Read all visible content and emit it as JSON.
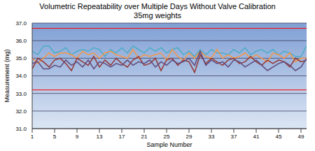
{
  "chart_data": {
    "type": "line",
    "title": "Volumetric Repeatability over Multiple Days Without Valve Calibration",
    "subtitle": "35mg weights",
    "x_label": "Sample Number",
    "y_label": "Measurement (mg)",
    "x": [
      1,
      2,
      3,
      4,
      5,
      6,
      7,
      8,
      9,
      10,
      11,
      12,
      13,
      14,
      15,
      16,
      17,
      18,
      19,
      20,
      21,
      22,
      23,
      24,
      25,
      26,
      27,
      28,
      29,
      30,
      31,
      32,
      33,
      34,
      35,
      36,
      37,
      38,
      39,
      40,
      41,
      42,
      43,
      44,
      45,
      46,
      47,
      48,
      49,
      50
    ],
    "xlim": [
      1,
      50
    ],
    "xticks": [
      1,
      5,
      9,
      13,
      17,
      21,
      25,
      29,
      33,
      37,
      41,
      45,
      49
    ],
    "ylim": [
      31,
      37
    ],
    "yticks": [
      {
        "value": 31,
        "label": "31.0"
      },
      {
        "value": 32,
        "label": "32.0"
      },
      {
        "value": 33,
        "label": "33.0"
      },
      {
        "value": 34,
        "label": "34.0"
      },
      {
        "value": 35,
        "label": "35.0"
      },
      {
        "value": 36,
        "label": "36.0"
      },
      {
        "value": 37,
        "label": "37.0"
      }
    ],
    "grid": true,
    "series": [
      {
        "color": "#4bacc6",
        "values": [
          35.4,
          35.2,
          35.7,
          35.7,
          35.3,
          35.4,
          35.6,
          35.2,
          35.4,
          35.5,
          35.4,
          35.6,
          35.5,
          35.1,
          35.5,
          35.3,
          35.6,
          35.3,
          35.7,
          35.5,
          35.3,
          35.6,
          35.4,
          35.6,
          35.3,
          35.5,
          35.6,
          35.2,
          35.4,
          35.1,
          35.5,
          35.2,
          35.5,
          35.3,
          35.3,
          35.2,
          35.5,
          35.3,
          35.6,
          35.2,
          35.4,
          35.5,
          35.3,
          35.5,
          35.2,
          35.4,
          35.3,
          35.1,
          35.1,
          35.7
        ]
      },
      {
        "color": "#f79646",
        "values": [
          35.0,
          34.7,
          35.0,
          35.3,
          35.1,
          35.3,
          35.3,
          35.2,
          35.0,
          35.4,
          35.2,
          35.3,
          35.0,
          35.3,
          35.4,
          35.2,
          35.1,
          35.0,
          35.5,
          35.0,
          35.2,
          35.1,
          35.2,
          35.3,
          34.9,
          35.5,
          35.1,
          34.9,
          35.3,
          35.0,
          35.4,
          35.1,
          35.0,
          35.5,
          35.0,
          35.2,
          35.0,
          35.1,
          35.3,
          35.0,
          35.2,
          35.0,
          34.8,
          35.3,
          35.2,
          35.0,
          35.3,
          34.8,
          35.0,
          35.0
        ]
      },
      {
        "color": "#953735",
        "values": [
          34.4,
          35.0,
          34.8,
          34.5,
          34.9,
          35.0,
          34.7,
          34.3,
          35.0,
          34.8,
          34.6,
          35.1,
          34.5,
          34.9,
          34.6,
          35.0,
          34.7,
          34.5,
          34.9,
          35.1,
          34.6,
          34.7,
          35.0,
          34.3,
          34.9,
          35.0,
          34.6,
          34.9,
          34.8,
          34.2,
          35.2,
          34.7,
          35.0,
          34.8,
          34.6,
          34.9,
          35.0,
          34.7,
          34.8,
          35.1,
          34.8,
          34.6,
          34.9,
          34.7,
          34.9,
          34.8,
          34.5,
          35.0,
          34.8,
          34.9
        ]
      },
      {
        "color": "#604a7b",
        "values": [
          34.7,
          34.8,
          34.4,
          34.4,
          34.6,
          34.5,
          34.9,
          34.6,
          34.8,
          34.5,
          34.9,
          34.4,
          34.8,
          34.7,
          34.5,
          34.7,
          34.6,
          34.9,
          34.6,
          34.8,
          34.7,
          34.9,
          34.5,
          34.8,
          34.6,
          34.9,
          34.7,
          34.8,
          35.0,
          34.6,
          35.4,
          34.6,
          34.9,
          34.7,
          34.8,
          34.5,
          34.9,
          34.8,
          34.5,
          34.7,
          34.9,
          34.6,
          34.3,
          34.5,
          34.7,
          34.8,
          34.6,
          34.3,
          34.5,
          35.0
        ]
      },
      {
        "color": "#ff0000",
        "x": [
          1,
          50
        ],
        "values": [
          36.7,
          36.7
        ]
      },
      {
        "color": "#ff0000",
        "x": [
          1,
          50
        ],
        "values": [
          33.2,
          33.2
        ]
      }
    ]
  }
}
